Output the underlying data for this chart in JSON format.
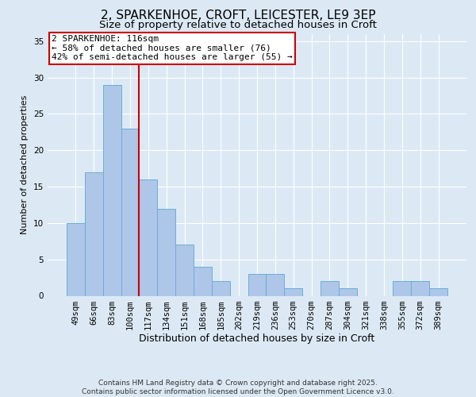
{
  "title": "2, SPARKENHOE, CROFT, LEICESTER, LE9 3EP",
  "subtitle": "Size of property relative to detached houses in Croft",
  "xlabel": "Distribution of detached houses by size in Croft",
  "ylabel": "Number of detached properties",
  "bar_labels": [
    "49sqm",
    "66sqm",
    "83sqm",
    "100sqm",
    "117sqm",
    "134sqm",
    "151sqm",
    "168sqm",
    "185sqm",
    "202sqm",
    "219sqm",
    "236sqm",
    "253sqm",
    "270sqm",
    "287sqm",
    "304sqm",
    "321sqm",
    "338sqm",
    "355sqm",
    "372sqm",
    "389sqm"
  ],
  "bar_values": [
    10,
    17,
    29,
    23,
    16,
    12,
    7,
    4,
    2,
    0,
    3,
    3,
    1,
    0,
    2,
    1,
    0,
    0,
    2,
    2,
    1
  ],
  "bar_color": "#aec6e8",
  "bar_edge_color": "#6aaed6",
  "vline_x_index": 4,
  "vline_color": "#cc0000",
  "annotation_line1": "2 SPARKENHOE: 116sqm",
  "annotation_line2": "← 58% of detached houses are smaller (76)",
  "annotation_line3": "42% of semi-detached houses are larger (55) →",
  "annotation_box_color": "#ffffff",
  "annotation_box_edge_color": "#cc0000",
  "ylim": [
    0,
    36
  ],
  "yticks": [
    0,
    5,
    10,
    15,
    20,
    25,
    30,
    35
  ],
  "background_color": "#dce9f5",
  "footer_line1": "Contains HM Land Registry data © Crown copyright and database right 2025.",
  "footer_line2": "Contains public sector information licensed under the Open Government Licence v3.0.",
  "title_fontsize": 11,
  "subtitle_fontsize": 9.5,
  "xlabel_fontsize": 9,
  "ylabel_fontsize": 8,
  "tick_fontsize": 7.5,
  "annotation_fontsize": 8,
  "footer_fontsize": 6.5
}
